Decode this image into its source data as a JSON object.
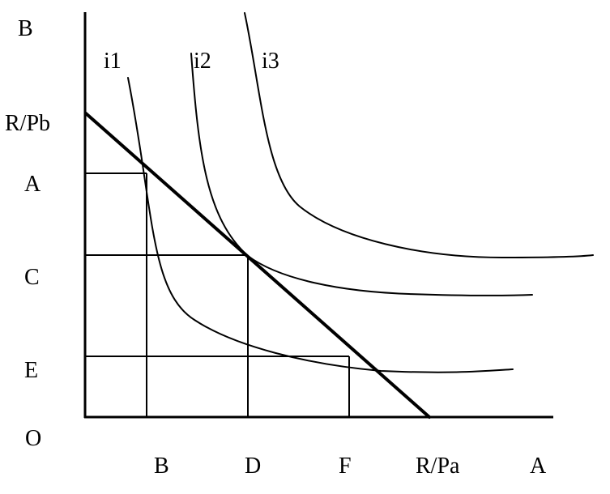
{
  "axes": {
    "y_axis_label": "B",
    "x_axis_label": "A",
    "origin_label": "O"
  },
  "y_ticks": {
    "budget_intercept": "R/Pb",
    "a": "A",
    "c": "C",
    "e": "E"
  },
  "x_ticks": {
    "b": "B",
    "d": "D",
    "f": "F",
    "budget_intercept": "R/Pa"
  },
  "curves": {
    "i1": "i1",
    "i2": "i2",
    "i3": "i3"
  },
  "colors": {
    "ink": "#000000",
    "background": "#ffffff"
  }
}
